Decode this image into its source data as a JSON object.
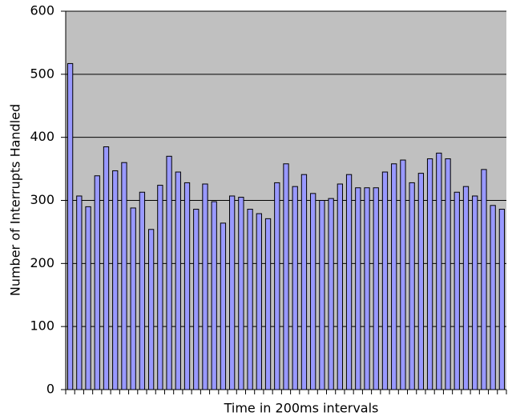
{
  "chart_data": {
    "type": "bar",
    "x_label": "Time in 200ms intervals",
    "y_label": "Number of Interrupts Handled",
    "categories": [
      null,
      null,
      null,
      null,
      null,
      null,
      null,
      null,
      null,
      null,
      null,
      null,
      null,
      null,
      null,
      null,
      null,
      null,
      null,
      null,
      null,
      null,
      null,
      null,
      null,
      null,
      null,
      null,
      null,
      null,
      null,
      null,
      null,
      null,
      null,
      null,
      null,
      null,
      null,
      null,
      null,
      null,
      null,
      null,
      null,
      null,
      null,
      null,
      null
    ],
    "values": [
      517,
      307,
      290,
      339,
      385,
      347,
      360,
      288,
      313,
      254,
      324,
      370,
      345,
      328,
      286,
      326,
      298,
      264,
      307,
      305,
      286,
      279,
      271,
      328,
      358,
      322,
      341,
      311,
      300,
      303,
      326,
      341,
      320,
      320,
      320,
      345,
      358,
      364,
      328,
      343,
      366,
      375,
      366,
      313,
      322,
      307,
      349,
      292,
      286
    ],
    "color": "#9999ff",
    "ylim": [
      0,
      600
    ],
    "yticks": [
      0,
      100,
      200,
      300,
      400,
      500,
      600
    ],
    "grid": true
  }
}
